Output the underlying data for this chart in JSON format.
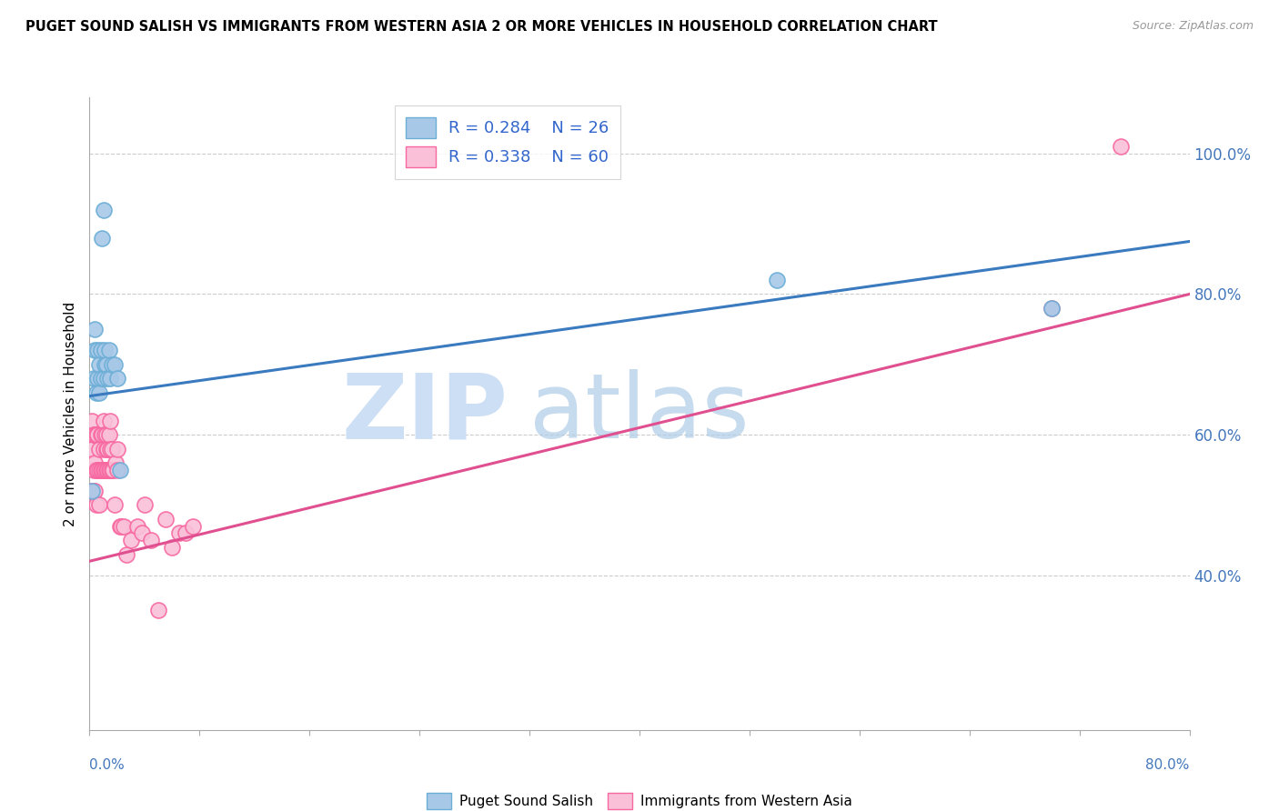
{
  "title": "PUGET SOUND SALISH VS IMMIGRANTS FROM WESTERN ASIA 2 OR MORE VEHICLES IN HOUSEHOLD CORRELATION CHART",
  "source": "Source: ZipAtlas.com",
  "ylabel": "2 or more Vehicles in Household",
  "blue_label": "Puget Sound Salish",
  "pink_label": "Immigrants from Western Asia",
  "blue_R": "R = 0.284",
  "blue_N": "N = 26",
  "pink_R": "R = 0.338",
  "pink_N": "N = 60",
  "xlim": [
    0.0,
    0.8
  ],
  "ylim": [
    0.18,
    1.08
  ],
  "yticks": [
    0.4,
    0.6,
    0.8,
    1.0
  ],
  "ytick_labels": [
    "40.0%",
    "60.0%",
    "80.0%",
    "100.0%"
  ],
  "blue_scatter_color": "#a8c8e8",
  "blue_edge_color": "#6baed6",
  "pink_scatter_color": "#f9c0d8",
  "pink_edge_color": "#f768a1",
  "trend_blue": "#3a7abf",
  "trend_pink": "#e05090",
  "blue_points_x": [
    0.002,
    0.003,
    0.004,
    0.004,
    0.005,
    0.006,
    0.006,
    0.007,
    0.007,
    0.008,
    0.008,
    0.009,
    0.01,
    0.01,
    0.011,
    0.011,
    0.012,
    0.013,
    0.014,
    0.015,
    0.016,
    0.018,
    0.02,
    0.022,
    0.5,
    0.7
  ],
  "blue_points_y": [
    0.52,
    0.68,
    0.72,
    0.75,
    0.66,
    0.68,
    0.72,
    0.66,
    0.7,
    0.68,
    0.72,
    0.88,
    0.92,
    0.68,
    0.7,
    0.72,
    0.7,
    0.68,
    0.72,
    0.68,
    0.7,
    0.7,
    0.68,
    0.55,
    0.82,
    0.78
  ],
  "pink_points_x": [
    0.001,
    0.002,
    0.002,
    0.003,
    0.003,
    0.003,
    0.004,
    0.004,
    0.004,
    0.005,
    0.005,
    0.005,
    0.006,
    0.006,
    0.007,
    0.007,
    0.007,
    0.008,
    0.008,
    0.009,
    0.009,
    0.01,
    0.01,
    0.01,
    0.011,
    0.011,
    0.012,
    0.012,
    0.012,
    0.013,
    0.013,
    0.014,
    0.014,
    0.015,
    0.015,
    0.015,
    0.016,
    0.016,
    0.017,
    0.018,
    0.019,
    0.02,
    0.02,
    0.022,
    0.023,
    0.025,
    0.027,
    0.03,
    0.035,
    0.038,
    0.04,
    0.045,
    0.05,
    0.055,
    0.06,
    0.065,
    0.07,
    0.075,
    0.7,
    0.75
  ],
  "pink_points_y": [
    0.52,
    0.58,
    0.62,
    0.52,
    0.55,
    0.6,
    0.52,
    0.56,
    0.6,
    0.5,
    0.55,
    0.6,
    0.55,
    0.6,
    0.5,
    0.55,
    0.58,
    0.55,
    0.6,
    0.55,
    0.6,
    0.55,
    0.58,
    0.62,
    0.55,
    0.6,
    0.55,
    0.58,
    0.6,
    0.55,
    0.58,
    0.55,
    0.6,
    0.55,
    0.58,
    0.62,
    0.55,
    0.58,
    0.55,
    0.5,
    0.56,
    0.55,
    0.58,
    0.47,
    0.47,
    0.47,
    0.43,
    0.45,
    0.47,
    0.46,
    0.5,
    0.45,
    0.35,
    0.48,
    0.44,
    0.46,
    0.46,
    0.47,
    0.78,
    1.01
  ],
  "trend_blue_x0": 0.0,
  "trend_blue_y0": 0.655,
  "trend_blue_x1": 0.8,
  "trend_blue_y1": 0.875,
  "trend_pink_x0": 0.0,
  "trend_pink_y0": 0.42,
  "trend_pink_x1": 0.8,
  "trend_pink_y1": 0.8,
  "grid_color": "#cccccc",
  "grid_style": "--",
  "watermark_zip_color": "#ccdff5",
  "watermark_atlas_color": "#b0cce8"
}
